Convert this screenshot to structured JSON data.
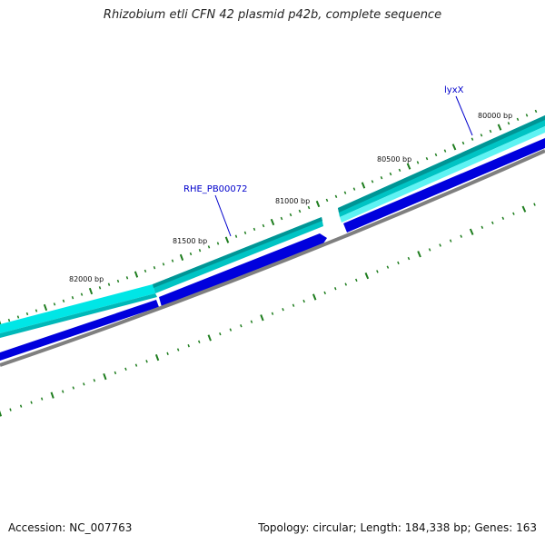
{
  "title": "Rhizobium etli CFN 42 plasmid p42b, complete sequence",
  "footer": {
    "accession": "Accession: NC_007763",
    "summary": "Topology: circular; Length: 184,338 bp; Genes: 163"
  },
  "ticks": [
    {
      "label": "80000 bp"
    },
    {
      "label": "80500 bp"
    },
    {
      "label": "81000 bp"
    },
    {
      "label": "81500 bp"
    },
    {
      "label": "82000 bp"
    }
  ],
  "genes": [
    {
      "name": "lyxX"
    },
    {
      "name": "RHE_PB00072"
    }
  ],
  "colors": {
    "forward_cds_light": "#00e0e0",
    "forward_cds_dark": "#008c8c",
    "reverse_cds": "#0000dd",
    "backbone": "#808080",
    "tick": "#1e7d1e",
    "gene_label": "#0000cc"
  }
}
